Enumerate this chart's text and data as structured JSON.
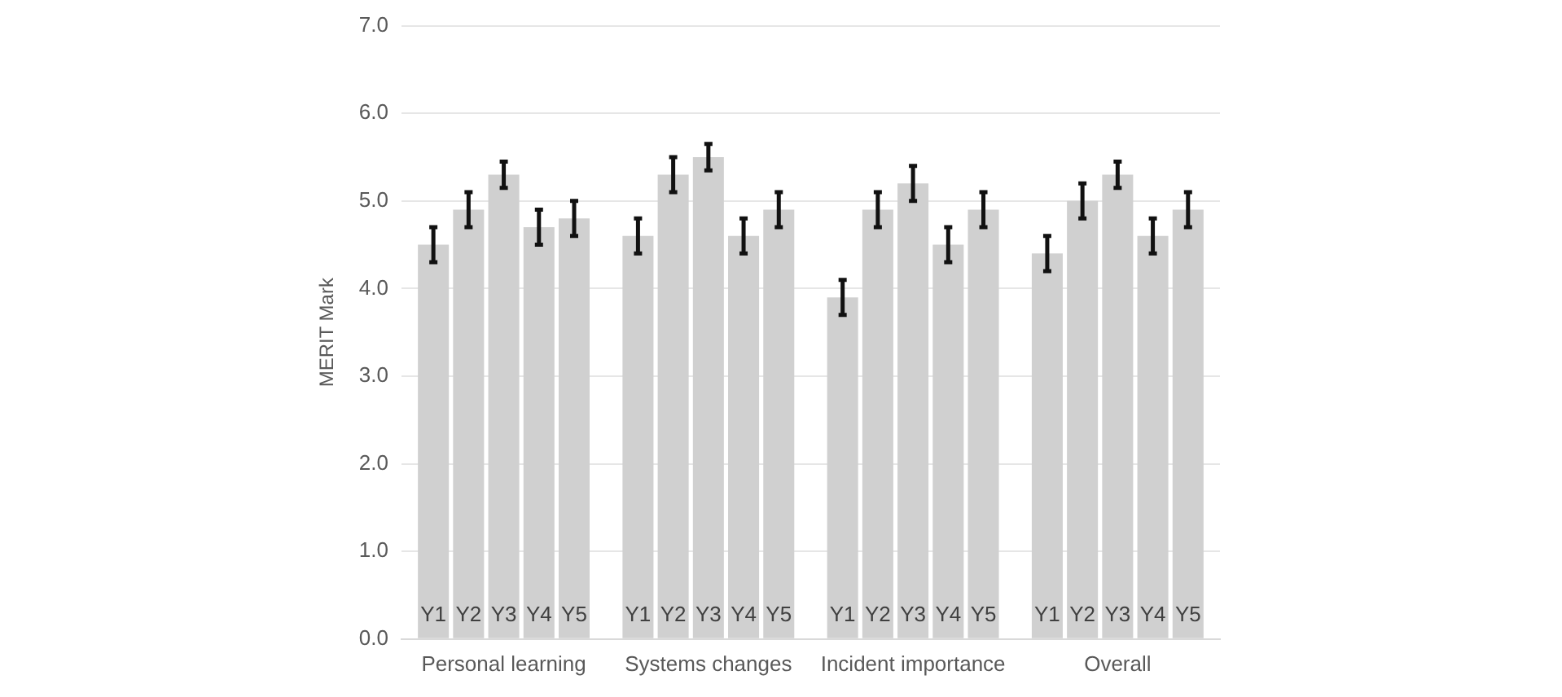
{
  "chart_data": {
    "type": "bar",
    "ylabel": "MERIT Mark",
    "categories": [
      "Personal learning",
      "Systems changes",
      "Incident importance",
      "Overall"
    ],
    "series": [
      {
        "name": "Y1",
        "color": "#d0d0d0",
        "values": [
          4.5,
          4.6,
          3.9,
          4.4
        ],
        "errors": [
          0.2,
          0.2,
          0.2,
          0.2
        ]
      },
      {
        "name": "Y2",
        "color": "#d0d0d0",
        "values": [
          4.9,
          5.3,
          4.9,
          5.0
        ],
        "errors": [
          0.2,
          0.2,
          0.2,
          0.2
        ]
      },
      {
        "name": "Y3",
        "color": "#d0d0d0",
        "values": [
          5.3,
          5.5,
          5.2,
          5.3
        ],
        "errors": [
          0.15,
          0.15,
          0.2,
          0.15
        ]
      },
      {
        "name": "Y4",
        "color": "#d0d0d0",
        "values": [
          4.7,
          4.6,
          4.5,
          4.6
        ],
        "errors": [
          0.2,
          0.2,
          0.2,
          0.2
        ]
      },
      {
        "name": "Y5",
        "color": "#d0d0d0",
        "values": [
          4.8,
          4.9,
          4.9,
          4.9
        ],
        "errors": [
          0.2,
          0.2,
          0.2,
          0.2
        ]
      }
    ],
    "ylim": [
      0,
      7
    ],
    "yticks": [
      {
        "value": 0,
        "label": "0.0"
      },
      {
        "value": 1,
        "label": "1.0"
      },
      {
        "value": 2,
        "label": "2.0"
      },
      {
        "value": 3,
        "label": "3.0"
      },
      {
        "value": 4,
        "label": "4.0"
      },
      {
        "value": 5,
        "label": "5.0"
      },
      {
        "value": 6,
        "label": "6.0"
      },
      {
        "value": 7,
        "label": "7.0"
      }
    ],
    "grid": "y",
    "legend": false
  }
}
